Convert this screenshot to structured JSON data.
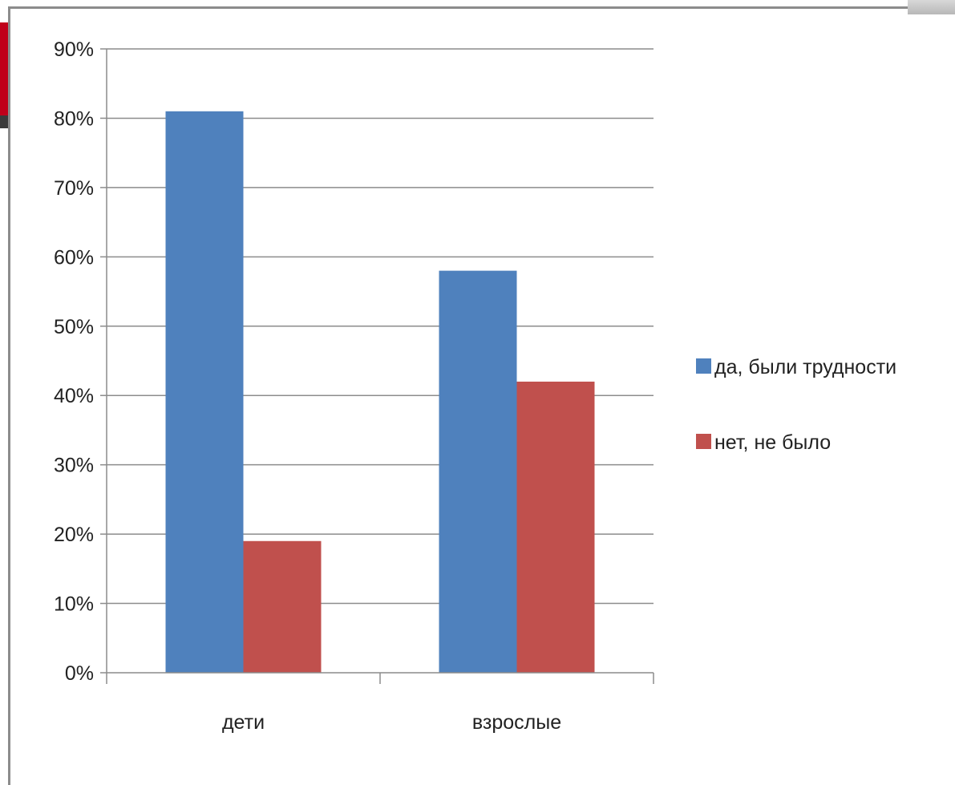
{
  "chart_data": {
    "type": "bar",
    "title": "",
    "xlabel": "",
    "ylabel": "",
    "categories": [
      "дети",
      "взрослые"
    ],
    "series": [
      {
        "name": "да, были трудности",
        "values": [
          81,
          58
        ],
        "color": "#4f81bd"
      },
      {
        "name": "нет, не было",
        "values": [
          19,
          42
        ],
        "color": "#c0504d"
      }
    ],
    "ylim": [
      0,
      90
    ],
    "y_ticks": [
      0,
      10,
      20,
      30,
      40,
      50,
      60,
      70,
      80,
      90
    ],
    "y_tick_labels": [
      "0%",
      "10%",
      "20%",
      "30%",
      "40%",
      "50%",
      "60%",
      "70%",
      "80%",
      "90%"
    ],
    "y_unit": "%",
    "grid": true,
    "legend_position": "right",
    "colors": {
      "grid": "#8c8c8c",
      "axis": "#8c8c8c",
      "text": "#222222"
    }
  }
}
